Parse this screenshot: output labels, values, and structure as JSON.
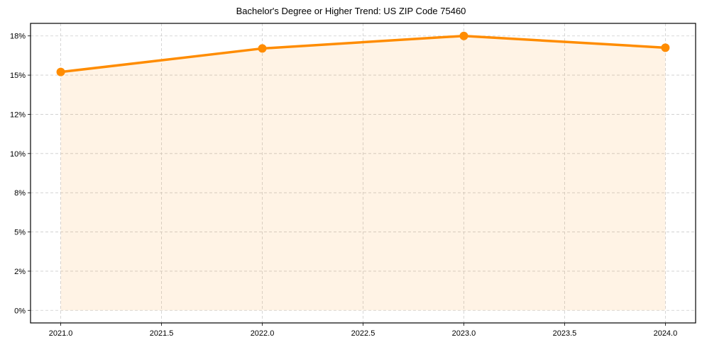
{
  "chart_data": {
    "type": "line",
    "title": "Bachelor's Degree or Higher Trend: US ZIP Code 75460",
    "xlabel": "",
    "ylabel": "",
    "x": [
      2021,
      2022,
      2023,
      2024
    ],
    "series": [
      {
        "name": "Bachelor's Degree or Higher",
        "values": [
          15.2,
          16.7,
          17.5,
          16.75
        ],
        "color": "#FF8C00",
        "fill": true,
        "fill_color": "#FF8C00",
        "fill_alpha": 0.1,
        "marker": "circle"
      }
    ],
    "xticks": [
      2021.0,
      2021.5,
      2022.0,
      2022.5,
      2023.0,
      2023.5,
      2024.0
    ],
    "xtick_labels": [
      "2021.0",
      "2021.5",
      "2022.0",
      "2022.5",
      "2023.0",
      "2023.5",
      "2024.0"
    ],
    "yticks": [
      0,
      2.5,
      5,
      7.5,
      10,
      12.5,
      15,
      17.5
    ],
    "ytick_labels": [
      "0%",
      "2%",
      "5%",
      "8%",
      "10%",
      "12%",
      "15%",
      "18%"
    ],
    "xlim": [
      2020.85,
      2024.15
    ],
    "ylim": [
      -0.8,
      18.3
    ],
    "grid": true,
    "grid_style": "dashed",
    "legend": null
  }
}
